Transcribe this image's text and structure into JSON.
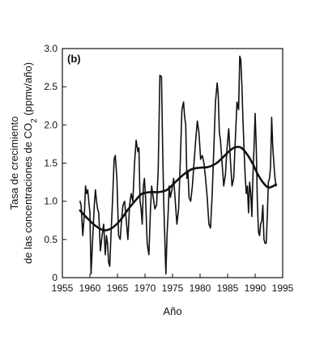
{
  "chart_data": {
    "type": "line",
    "title": "",
    "panel_label": "(b)",
    "xlabel": "Año",
    "ylabel_line1": "Tasa de crecimiento",
    "ylabel_line2": "de las concentraciones de CO",
    "ylabel_sub": "2",
    "ylabel_unit": " (ppmv/año)",
    "xlim": [
      1955,
      1995
    ],
    "ylim": [
      0,
      3.0
    ],
    "x_ticks": [
      1955,
      1960,
      1965,
      1970,
      1975,
      1980,
      1985,
      1990,
      1995
    ],
    "x_tick_labels": [
      "1955",
      "1960",
      "1965",
      "1970",
      "1975",
      "1980",
      "1985",
      "1990",
      "1995"
    ],
    "y_ticks": [
      0,
      0.5,
      1.0,
      1.5,
      2.0,
      2.5,
      3.0
    ],
    "y_tick_labels": [
      "0",
      "0.5",
      "1.0",
      "1.5",
      "2.0",
      "2.5",
      "3.0"
    ],
    "grid": false,
    "line_color": "#111111",
    "series": [
      {
        "style": "thin",
        "x": [
          1958.2,
          1958.4,
          1958.7,
          1959.0,
          1959.2,
          1959.4,
          1959.6,
          1959.8,
          1960.0,
          1960.2,
          1960.5,
          1960.8,
          1961.0,
          1961.2,
          1961.4,
          1961.6,
          1961.9,
          1962.2,
          1962.5,
          1962.8,
          1963.0,
          1963.2,
          1963.4,
          1963.6,
          1963.8,
          1964.1,
          1964.4,
          1964.6,
          1964.9,
          1965.2,
          1965.5,
          1965.8,
          1966.0,
          1966.3,
          1966.6,
          1966.9,
          1967.2,
          1967.5,
          1967.8,
          1968.1,
          1968.4,
          1968.7,
          1968.9,
          1969.1,
          1969.3,
          1969.5,
          1969.7,
          1969.9,
          1970.1,
          1970.4,
          1970.7,
          1971.0,
          1971.2,
          1971.5,
          1971.8,
          1972.1,
          1972.4,
          1972.7,
          1973.0,
          1973.2,
          1973.4,
          1973.6,
          1973.8,
          1974.0,
          1974.2,
          1974.4,
          1974.6,
          1974.9,
          1975.2,
          1975.5,
          1975.8,
          1976.1,
          1976.4,
          1976.7,
          1977.0,
          1977.2,
          1977.4,
          1977.6,
          1977.8,
          1978.0,
          1978.3,
          1978.6,
          1978.9,
          1979.2,
          1979.5,
          1979.8,
          1980.1,
          1980.4,
          1980.7,
          1981.0,
          1981.3,
          1981.6,
          1981.9,
          1982.2,
          1982.5,
          1982.8,
          1983.1,
          1983.3,
          1983.5,
          1983.7,
          1984.0,
          1984.3,
          1984.6,
          1984.9,
          1985.2,
          1985.5,
          1985.8,
          1986.1,
          1986.4,
          1986.7,
          1987.0,
          1987.2,
          1987.4,
          1987.6,
          1987.8,
          1988.0,
          1988.2,
          1988.4,
          1988.6,
          1988.8,
          1989.0,
          1989.2,
          1989.4,
          1989.6,
          1989.8,
          1990.0,
          1990.2,
          1990.4,
          1990.6,
          1990.8,
          1991.0,
          1991.2,
          1991.4,
          1991.6,
          1991.8,
          1992.0,
          1992.2,
          1992.4,
          1992.6,
          1992.8,
          1993.0,
          1993.2,
          1993.4,
          1993.6,
          1993.8
        ],
        "y": [
          1.0,
          0.95,
          0.55,
          0.85,
          1.2,
          1.1,
          1.15,
          1.0,
          0.85,
          0.05,
          0.5,
          0.95,
          1.15,
          1.0,
          0.9,
          0.85,
          0.35,
          0.55,
          0.7,
          0.3,
          0.55,
          0.45,
          0.2,
          0.15,
          0.5,
          1.0,
          1.55,
          1.6,
          1.3,
          0.55,
          0.5,
          0.8,
          0.95,
          1.0,
          0.75,
          0.5,
          0.95,
          1.1,
          1.0,
          1.5,
          1.8,
          1.65,
          1.7,
          1.0,
          0.9,
          0.7,
          1.2,
          1.3,
          1.05,
          0.45,
          0.3,
          0.9,
          1.2,
          1.05,
          0.9,
          0.95,
          1.4,
          2.65,
          2.63,
          1.7,
          1.0,
          0.5,
          0.05,
          0.55,
          0.85,
          1.2,
          1.05,
          1.15,
          1.3,
          1.0,
          0.7,
          0.9,
          1.5,
          2.2,
          2.3,
          2.1,
          2.0,
          1.3,
          1.4,
          1.05,
          1.0,
          1.2,
          1.5,
          1.8,
          2.05,
          1.9,
          1.55,
          1.6,
          1.5,
          1.3,
          1.05,
          0.7,
          0.65,
          1.1,
          1.7,
          2.3,
          2.55,
          2.4,
          1.9,
          1.8,
          1.5,
          1.2,
          1.35,
          1.7,
          1.95,
          1.55,
          1.2,
          1.3,
          1.8,
          2.3,
          2.2,
          2.9,
          2.85,
          2.5,
          2.05,
          1.65,
          1.3,
          1.1,
          1.2,
          0.85,
          1.25,
          1.1,
          0.8,
          1.35,
          1.7,
          2.15,
          1.7,
          1.0,
          0.6,
          0.55,
          0.7,
          0.75,
          0.95,
          0.5,
          0.45,
          0.45,
          0.8,
          1.25,
          1.3,
          1.45,
          2.1,
          1.7,
          1.5,
          1.3,
          1.2
        ]
      },
      {
        "style": "thick",
        "x": [
          1958.2,
          1959.5,
          1961.0,
          1962.5,
          1964.0,
          1965.5,
          1967.0,
          1968.5,
          1969.5,
          1971.0,
          1972.5,
          1974.0,
          1975.5,
          1977.0,
          1978.5,
          1980.0,
          1981.5,
          1983.0,
          1984.5,
          1985.5,
          1986.5,
          1987.5,
          1988.5,
          1989.5,
          1990.5,
          1991.5,
          1992.5,
          1993.8
        ],
        "y": [
          0.88,
          0.78,
          0.68,
          0.62,
          0.65,
          0.75,
          0.9,
          1.03,
          1.1,
          1.12,
          1.12,
          1.15,
          1.25,
          1.35,
          1.42,
          1.44,
          1.45,
          1.5,
          1.6,
          1.67,
          1.71,
          1.7,
          1.62,
          1.5,
          1.35,
          1.24,
          1.18,
          1.22
        ]
      }
    ]
  }
}
